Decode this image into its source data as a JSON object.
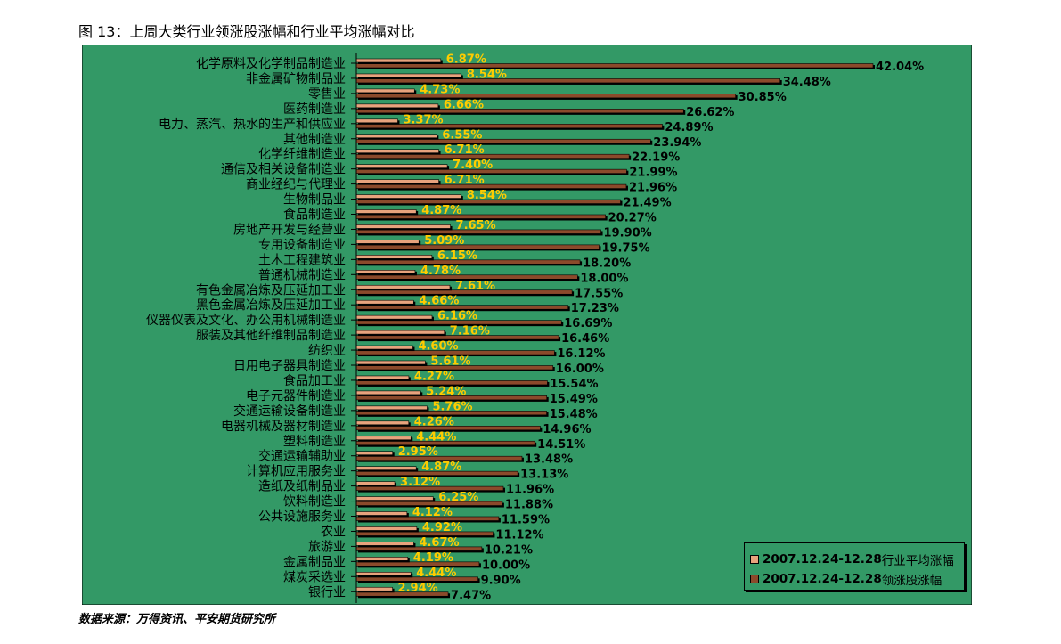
{
  "figure_title": "图 13：上周大类行业领涨股涨幅和行业平均涨幅对比",
  "source_note": "数据来源：万得资讯、平安期货研究所",
  "colors": {
    "background": "#339966",
    "avg_bar": "#E8A37D",
    "top_bar": "#8B4A2B",
    "shadow": "#000000",
    "avg_label": "#FFCC00",
    "top_label": "#000000"
  },
  "legend": {
    "position": "bottom-right",
    "items": [
      {
        "date": "2007.12.24-12.28",
        "text": "行业平均涨幅",
        "swatch": "#E8A37D"
      },
      {
        "date": "2007.12.24-12.28",
        "text": "领涨股涨幅",
        "swatch": "#8B4A2B"
      }
    ]
  },
  "chart_data": {
    "type": "bar",
    "orientation": "horizontal",
    "xlim": [
      0,
      42.04
    ],
    "grid": false,
    "categories": [
      "化学原料及化学制品制造业",
      "非金属矿物制品业",
      "零售业",
      "医药制造业",
      "电力、蒸汽、热水的生产和供应业",
      "其他制造业",
      "化学纤维制造业",
      "通信及相关设备制造业",
      "商业经纪与代理业",
      "生物制品业",
      "食品制造业",
      "房地产开发与经营业",
      "专用设备制造业",
      "土木工程建筑业",
      "普通机械制造业",
      "有色金属冶炼及压延加工业",
      "黑色金属冶炼及压延加工业",
      "仪器仪表及文化、办公用机械制造业",
      "服装及其他纤维制品制造业",
      "纺织业",
      "日用电子器具制造业",
      "食品加工业",
      "电子元器件制造业",
      "交通运输设备制造业",
      "电器机械及器材制造业",
      "塑料制造业",
      "交通运输辅助业",
      "计算机应用服务业",
      "造纸及纸制品业",
      "饮料制造业",
      "公共设施服务业",
      "农业",
      "旅游业",
      "金属制品业",
      "煤炭采选业",
      "银行业"
    ],
    "series": [
      {
        "name": "2007.12.24-12.28行业平均涨幅",
        "values": [
          6.87,
          8.54,
          4.73,
          6.66,
          3.37,
          6.55,
          6.71,
          7.4,
          6.71,
          8.54,
          4.87,
          7.65,
          5.09,
          6.15,
          4.78,
          7.61,
          4.66,
          6.16,
          7.16,
          4.6,
          5.61,
          4.27,
          5.24,
          5.76,
          4.26,
          4.44,
          2.95,
          4.87,
          3.12,
          6.25,
          4.12,
          4.92,
          4.67,
          4.19,
          4.44,
          2.94
        ],
        "labels": [
          "6.87%",
          "8.54%",
          "4.73%",
          "6.66%",
          "3.37%",
          "6.55%",
          "6.71%",
          "7.40%",
          "6.71%",
          "8.54%",
          "4.87%",
          "7.65%",
          "5.09%",
          "6.15%",
          "4.78%",
          "7.61%",
          "4.66%",
          "6.16%",
          "7.16%",
          "4.60%",
          "5.61%",
          "4.27%",
          "5.24%",
          "5.76%",
          "4.26%",
          "4.44%",
          "2.95%",
          "4.87%",
          "3.12%",
          "6.25%",
          "4.12%",
          "4.92%",
          "4.67%",
          "4.19%",
          "4.44%",
          "2.94%"
        ]
      },
      {
        "name": "2007.12.24-12.28领涨股涨幅",
        "values": [
          42.04,
          34.48,
          30.85,
          26.62,
          24.89,
          23.94,
          22.19,
          21.99,
          21.96,
          21.49,
          20.27,
          19.9,
          19.75,
          18.2,
          18.0,
          17.55,
          17.23,
          16.69,
          16.46,
          16.12,
          16.0,
          15.54,
          15.49,
          15.48,
          14.96,
          14.51,
          13.48,
          13.13,
          11.96,
          11.88,
          11.59,
          11.12,
          10.21,
          10.0,
          9.9,
          7.47
        ],
        "labels": [
          "42.04%",
          "34.48%",
          "30.85%",
          "26.62%",
          "24.89%",
          "23.94%",
          "22.19%",
          "21.99%",
          "21.96%",
          "21.49%",
          "20.27%",
          "19.90%",
          "19.75%",
          "18.20%",
          "18.00%",
          "17.55%",
          "17.23%",
          "16.69%",
          "16.46%",
          "16.12%",
          "16.00%",
          "15.54%",
          "15.49%",
          "15.48%",
          "14.96%",
          "14.51%",
          "13.48%",
          "13.13%",
          "11.96%",
          "11.88%",
          "11.59%",
          "11.12%",
          "10.21%",
          "10.00%",
          "9.90%",
          "7.47%"
        ]
      }
    ]
  }
}
